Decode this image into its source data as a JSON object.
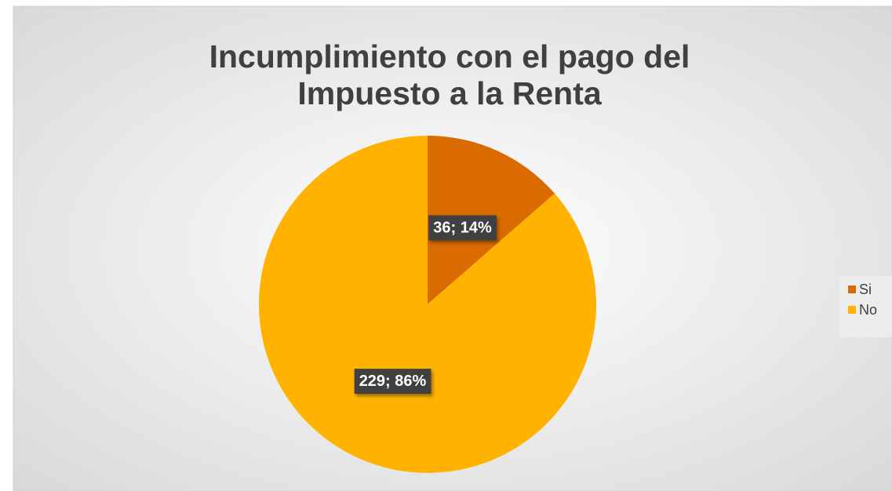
{
  "chart_data": {
    "type": "pie",
    "title": "Incumplimiento con el pago del Impuesto a la Renta",
    "categories": [
      "Si",
      "No"
    ],
    "values": [
      36,
      229
    ],
    "value_labels": [
      "36; 14%",
      "229; 86%"
    ],
    "colors": [
      "#d96b00",
      "#ffb300"
    ],
    "legend": "right"
  }
}
